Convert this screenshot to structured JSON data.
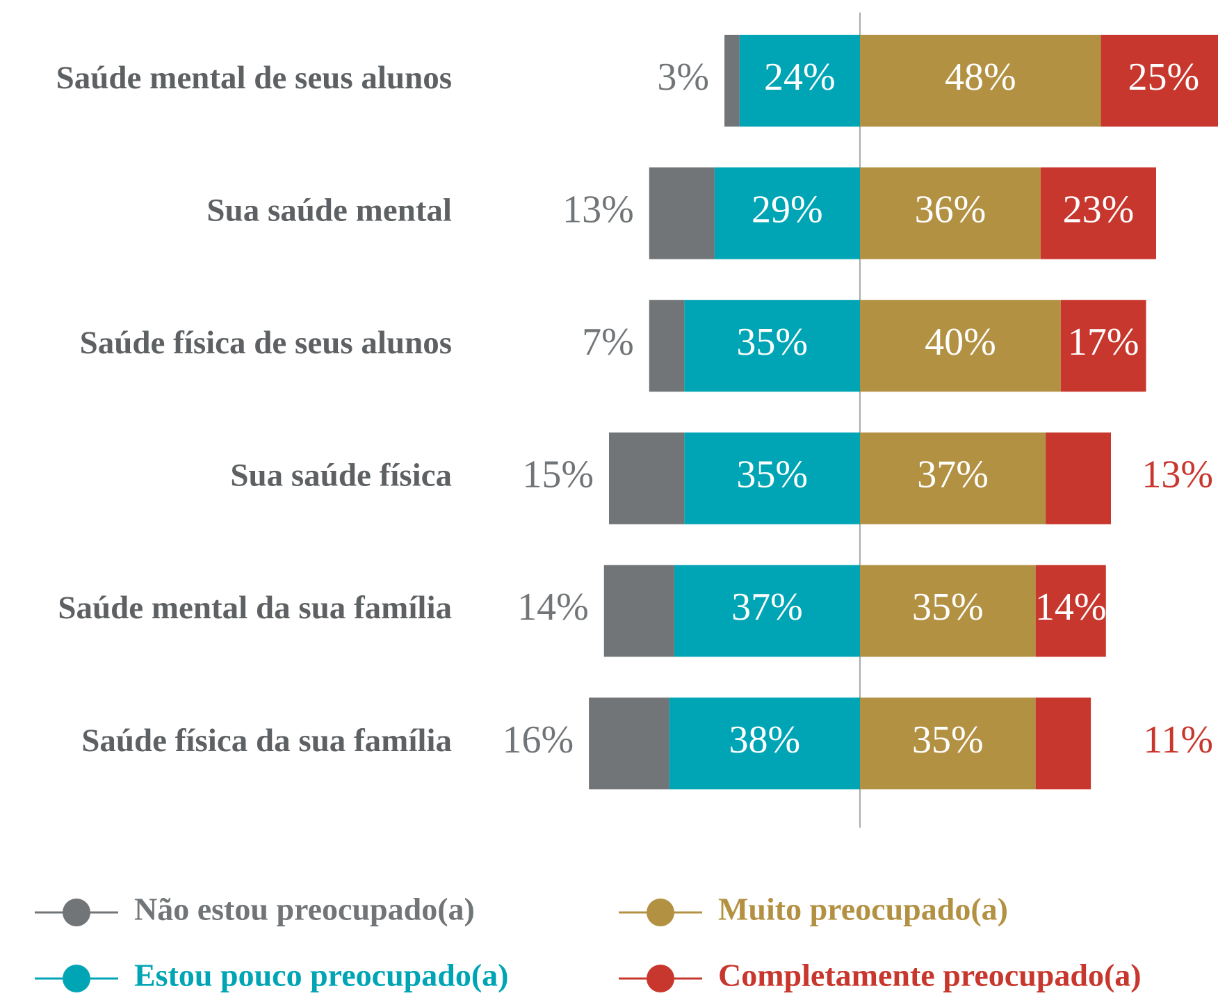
{
  "chart_data": {
    "type": "diverging_bar",
    "categories": [
      "Saúde mental de seus alunos",
      "Sua saúde mental",
      "Saúde física de seus alunos",
      "Sua saúde física",
      "Saúde mental da sua família",
      "Saúde física da sua família"
    ],
    "series": [
      {
        "name": "Não estou preocupado(a)",
        "color": "#717577",
        "side": "left",
        "values": [
          3,
          13,
          7,
          15,
          14,
          16
        ],
        "value_labels": [
          "3%",
          "13%",
          "7%",
          "15%",
          "14%",
          "16%"
        ]
      },
      {
        "name": "Estou pouco preocupado(a)",
        "color": "#00a5b5",
        "side": "left",
        "values": [
          24,
          29,
          35,
          35,
          37,
          38
        ],
        "value_labels": [
          "24%",
          "29%",
          "35%",
          "35%",
          "37%",
          "38%"
        ]
      },
      {
        "name": "Muito preocupado(a)",
        "color": "#b39143",
        "side": "right",
        "values": [
          48,
          36,
          40,
          37,
          35,
          35
        ],
        "value_labels": [
          "48%",
          "36%",
          "40%",
          "37%",
          "35%",
          "35%"
        ]
      },
      {
        "name": "Completamente preocupado(a)",
        "color": "#c8372d",
        "side": "right",
        "values": [
          25,
          23,
          17,
          13,
          14,
          11
        ],
        "value_labels": [
          "25%",
          "23%",
          "17%",
          "13%",
          "14%",
          "11%"
        ]
      }
    ]
  }
}
